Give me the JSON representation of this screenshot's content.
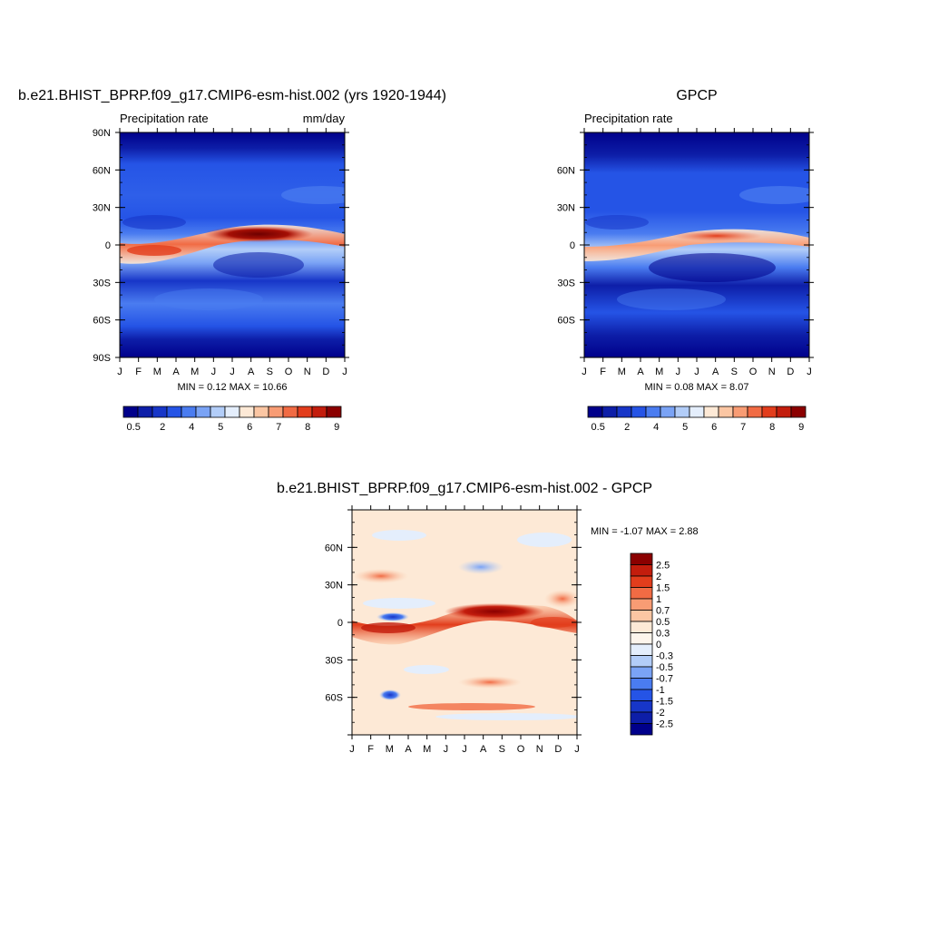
{
  "figure": {
    "panel1": {
      "title": "b.e21.BHIST_BPRP.f09_g17.CMIP6-esm-hist.002 (yrs 1920-1944)",
      "left_label": "Precipitation rate",
      "right_label": "mm/day",
      "minmax": "MIN =   0.12 MAX =  10.66"
    },
    "panel2": {
      "title": "GPCP",
      "left_label": "Precipitation rate",
      "minmax": "MIN =   0.08 MAX =   8.07"
    },
    "panel3": {
      "title": "b.e21.BHIST_BPRP.f09_g17.CMIP6-esm-hist.002 - GPCP",
      "minmax": "MIN =  -1.07 MAX =   2.88"
    },
    "month_labels": [
      "J",
      "F",
      "M",
      "A",
      "M",
      "J",
      "J",
      "A",
      "S",
      "O",
      "N",
      "D",
      "J"
    ],
    "lat_labels_full": [
      "90N",
      "60N",
      "30N",
      "0",
      "30S",
      "60S",
      "90S"
    ],
    "lat_labels_inner": [
      "60N",
      "30N",
      "0",
      "30S",
      "60S"
    ],
    "precip_colorbar_labels": [
      "0.5",
      "2",
      "4",
      "5",
      "6",
      "7",
      "8",
      "9"
    ],
    "diff_colorbar_labels": [
      "2.5",
      "2",
      "1.5",
      "1",
      "0.7",
      "0.5",
      "0.3",
      "0",
      "-0.3",
      "-0.5",
      "-0.7",
      "-1",
      "-1.5",
      "-2",
      "-2.5"
    ],
    "precip_colors": [
      "#00008b",
      "#0d1ea8",
      "#1736c8",
      "#2554e6",
      "#4a7cf0",
      "#7aa3f5",
      "#b2cdf8",
      "#e4eefc",
      "#fde9d6",
      "#fbc6a3",
      "#f89c74",
      "#f16b44",
      "#e23d1c",
      "#c31d0d",
      "#8b0000"
    ],
    "diff_colors": [
      "#8b0000",
      "#c31d0d",
      "#e23d1c",
      "#f16b44",
      "#f89c74",
      "#fbc6a3",
      "#fde9d6",
      "#fdf5ec",
      "#e4eefc",
      "#b2cdf8",
      "#7aa3f5",
      "#4a7cf0",
      "#2554e6",
      "#1736c8",
      "#0d1ea8",
      "#00008b"
    ]
  },
  "chart_data": [
    {
      "type": "heatmap",
      "title": "b.e21.BHIST_BPRP.f09_g17.CMIP6-esm-hist.002 (yrs 1920-1944)",
      "units": "mm/day",
      "x_categories": [
        "J",
        "F",
        "M",
        "A",
        "M",
        "J",
        "J",
        "A",
        "S",
        "O",
        "N",
        "D",
        "J"
      ],
      "y_range": [
        -90,
        90
      ],
      "min": 0.12,
      "max": 10.66,
      "levels": [
        0.5,
        1,
        2,
        3,
        4,
        4.5,
        5,
        5.5,
        6,
        6.5,
        7,
        7.5,
        8,
        8.5,
        9
      ],
      "itcz_peak": {
        "lat": 10,
        "month": "J-A",
        "value": 10.66
      }
    },
    {
      "type": "heatmap",
      "title": "GPCP",
      "units": "mm/day",
      "x_categories": [
        "J",
        "F",
        "M",
        "A",
        "M",
        "J",
        "J",
        "A",
        "S",
        "O",
        "N",
        "D",
        "J"
      ],
      "y_range": [
        -90,
        90
      ],
      "min": 0.08,
      "max": 8.07,
      "levels": [
        0.5,
        1,
        2,
        3,
        4,
        4.5,
        5,
        5.5,
        6,
        6.5,
        7,
        7.5,
        8,
        8.5,
        9
      ]
    },
    {
      "type": "heatmap",
      "title": "b.e21.BHIST_BPRP.f09_g17.CMIP6-esm-hist.002 - GPCP",
      "x_categories": [
        "J",
        "F",
        "M",
        "A",
        "M",
        "J",
        "J",
        "A",
        "S",
        "O",
        "N",
        "D",
        "J"
      ],
      "y_range": [
        -90,
        90
      ],
      "min": -1.07,
      "max": 2.88,
      "levels": [
        -2.5,
        -2,
        -1.5,
        -1,
        -0.7,
        -0.5,
        -0.3,
        0,
        0.3,
        0.5,
        0.7,
        1,
        1.5,
        2,
        2.5
      ]
    }
  ]
}
